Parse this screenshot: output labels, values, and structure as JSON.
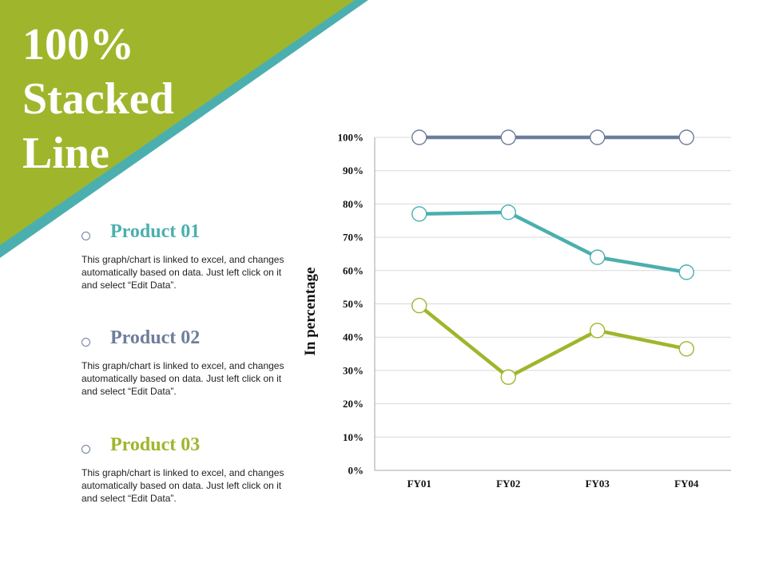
{
  "slide": {
    "title_lines": [
      "100%",
      "Stacked",
      "Line"
    ]
  },
  "products": [
    {
      "name": "Product 01",
      "color": "#4bafaf",
      "description": "This graph/chart is linked to excel, and changes automatically based on data. Just left click on it and select “Edit Data”."
    },
    {
      "name": "Product 02",
      "color": "#6e7d9c",
      "description": "This graph/chart is linked to excel, and changes automatically based on data. Just left click on it and select “Edit Data”."
    },
    {
      "name": "Product 03",
      "color": "#9fb62c",
      "description": "This graph/chart is linked to excel, and changes automatically based on data. Just left click on it and select “Edit Data”."
    }
  ],
  "colors": {
    "banner_green": "#9fb62c",
    "banner_teal": "#4bafaf",
    "grid": "#d9d9d9",
    "axis": "#a6a6a6"
  },
  "chart_data": {
    "type": "line",
    "stacked": "percent",
    "ylabel": "In percentage",
    "xlabel": "",
    "categories": [
      "FY01",
      "FY02",
      "FY03",
      "FY04"
    ],
    "ylim": [
      0,
      100
    ],
    "yticks": [
      "0%",
      "10%",
      "20%",
      "30%",
      "40%",
      "50%",
      "60%",
      "70%",
      "80%",
      "90%",
      "100%"
    ],
    "grid": true,
    "series": [
      {
        "color": "#9fb62c",
        "values": [
          49.5,
          28,
          42,
          36.5
        ]
      },
      {
        "color": "#4bafaf",
        "values": [
          77,
          77.5,
          64,
          59.5
        ]
      },
      {
        "color": "#6e7d9c",
        "values": [
          100,
          100,
          100,
          100
        ]
      }
    ]
  }
}
